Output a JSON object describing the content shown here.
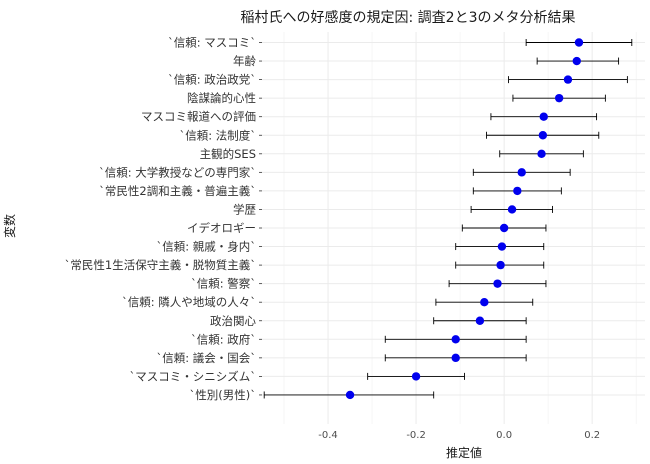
{
  "chart_data": {
    "type": "scatter",
    "title": "稲村氏への好感度の規定因: 調査2と3のメタ分析結果",
    "xlabel": "推定値",
    "ylabel": "変数",
    "xlim": [
      -0.55,
      0.32
    ],
    "xticks": [
      -0.4,
      -0.2,
      0.0,
      0.2
    ],
    "xtick_labels": [
      "-0.4",
      "-0.2",
      "0.0",
      "0.2"
    ],
    "grid": true,
    "point_color": "#0000ee",
    "errorbar_color": "#000000",
    "rows": [
      {
        "label": "`信頼: マスコミ`",
        "estimate": 0.17,
        "low": 0.05,
        "high": 0.29
      },
      {
        "label": "年齢",
        "estimate": 0.165,
        "low": 0.075,
        "high": 0.26
      },
      {
        "label": "`信頼: 政治政党`",
        "estimate": 0.145,
        "low": 0.01,
        "high": 0.28
      },
      {
        "label": "陰謀論的心性",
        "estimate": 0.125,
        "low": 0.02,
        "high": 0.23
      },
      {
        "label": "マスコミ報道への評価",
        "estimate": 0.09,
        "low": -0.03,
        "high": 0.21
      },
      {
        "label": "`信頼: 法制度`",
        "estimate": 0.088,
        "low": -0.04,
        "high": 0.215
      },
      {
        "label": "主観的SES",
        "estimate": 0.085,
        "low": -0.01,
        "high": 0.18
      },
      {
        "label": "`信頼: 大学教授などの専門家`",
        "estimate": 0.04,
        "low": -0.07,
        "high": 0.15
      },
      {
        "label": "`常民性2調和主義・普遍主義`",
        "estimate": 0.03,
        "low": -0.07,
        "high": 0.13
      },
      {
        "label": "学歴",
        "estimate": 0.018,
        "low": -0.075,
        "high": 0.11
      },
      {
        "label": "イデオロギー",
        "estimate": 0.0,
        "low": -0.095,
        "high": 0.095
      },
      {
        "label": "`信頼: 親戚・身内`",
        "estimate": -0.005,
        "low": -0.11,
        "high": 0.09
      },
      {
        "label": "`常民性1生活保守主義・脱物質主義`",
        "estimate": -0.008,
        "low": -0.11,
        "high": 0.09
      },
      {
        "label": "`信頼: 警察`",
        "estimate": -0.015,
        "low": -0.125,
        "high": 0.095
      },
      {
        "label": "`信頼: 隣人や地域の人々`",
        "estimate": -0.045,
        "low": -0.155,
        "high": 0.065
      },
      {
        "label": "政治関心",
        "estimate": -0.055,
        "low": -0.16,
        "high": 0.05
      },
      {
        "label": "`信頼: 政府`",
        "estimate": -0.11,
        "low": -0.27,
        "high": 0.05
      },
      {
        "label": "`信頼: 議会・国会`",
        "estimate": -0.11,
        "low": -0.27,
        "high": 0.05
      },
      {
        "label": "`マスコミ・シニシズム`",
        "estimate": -0.2,
        "low": -0.31,
        "high": -0.09
      },
      {
        "label": "`性別(男性)`",
        "estimate": -0.35,
        "low": -0.545,
        "high": -0.16
      }
    ]
  }
}
